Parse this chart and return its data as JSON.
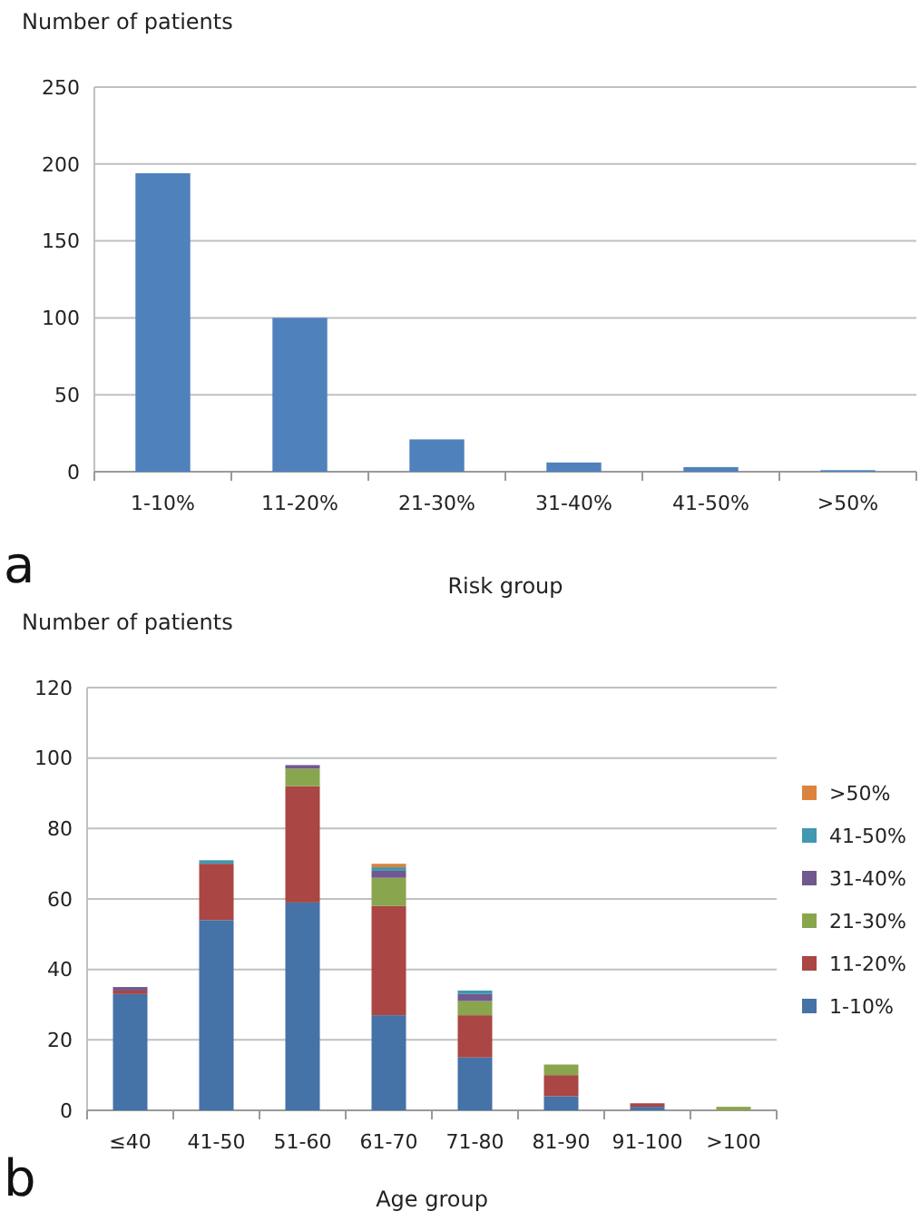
{
  "chart_data": [
    {
      "type": "bar",
      "ylabel": "Number of patients",
      "xlabel": "Risk group",
      "categories": [
        "1-10%",
        "11-20%",
        "21-30%",
        "31-40%",
        "41-50%",
        ">50%"
      ],
      "values": [
        194,
        100,
        21,
        6,
        3,
        1
      ],
      "color": "#4f81bd",
      "ylim": [
        0,
        250
      ],
      "yticks": [
        0,
        50,
        100,
        150,
        200,
        250
      ],
      "grid": "y",
      "annotations": [
        "a"
      ]
    },
    {
      "type": "bar",
      "stacked": true,
      "ylabel": "Number of patients",
      "xlabel": "Age group",
      "categories": [
        "≤40",
        "41-50",
        "51-60",
        "61-70",
        "71-80",
        "81-90",
        "91-100",
        ">100"
      ],
      "ylim": [
        0,
        120
      ],
      "yticks": [
        0,
        20,
        40,
        60,
        80,
        100,
        120
      ],
      "grid": "y",
      "legend": "right",
      "annotations": [
        "b"
      ],
      "series": [
        {
          "name": "1-10%",
          "color": "#4572a7",
          "values": [
            33,
            54,
            59,
            27,
            15,
            4,
            1,
            0
          ]
        },
        {
          "name": "11-20%",
          "color": "#aa4643",
          "values": [
            1,
            16,
            33,
            31,
            12,
            6,
            1,
            0
          ]
        },
        {
          "name": "21-30%",
          "color": "#89a54e",
          "values": [
            0,
            0,
            5,
            8,
            4,
            3,
            0,
            1
          ]
        },
        {
          "name": "31-40%",
          "color": "#71588f",
          "values": [
            1,
            0,
            1,
            2,
            2,
            0,
            0,
            0
          ]
        },
        {
          "name": "41-50%",
          "color": "#4198af",
          "values": [
            0,
            1,
            0,
            1,
            1,
            0,
            0,
            0
          ]
        },
        {
          "name": ">50%",
          "color": "#db843d",
          "values": [
            0,
            0,
            0,
            1,
            0,
            0,
            0,
            0
          ]
        }
      ]
    }
  ]
}
